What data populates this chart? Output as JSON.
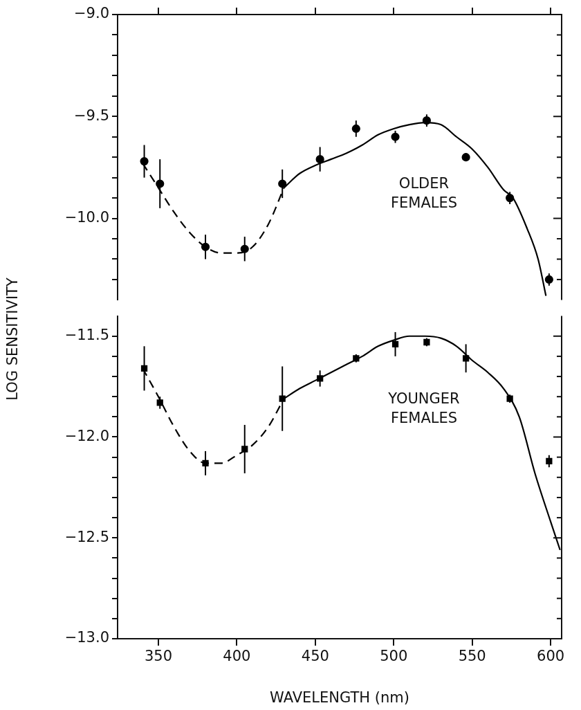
{
  "chart_data": [
    {
      "type": "scatter",
      "ylabel": "LOG SENSITIVITY",
      "xlim": [
        324,
        607
      ],
      "xticks": [
        {
          "value": 350,
          "label": null
        },
        {
          "value": 400,
          "label": null
        },
        {
          "value": 450,
          "label": null
        },
        {
          "value": 500,
          "label": null
        },
        {
          "value": 550,
          "label": null
        },
        {
          "value": 600,
          "label": null
        }
      ],
      "ylim": [
        -10.4,
        -9.0
      ],
      "yticks": [
        {
          "value": -9.0,
          "label": "−9.0"
        },
        {
          "value": -9.1,
          "label": null
        },
        {
          "value": -9.2,
          "label": null
        },
        {
          "value": -9.3,
          "label": null
        },
        {
          "value": -9.4,
          "label": null
        },
        {
          "value": -9.5,
          "label": "−9.5"
        },
        {
          "value": -9.6,
          "label": null
        },
        {
          "value": -9.7,
          "label": null
        },
        {
          "value": -9.8,
          "label": null
        },
        {
          "value": -9.9,
          "label": null
        },
        {
          "value": -10.0,
          "label": "−10.0"
        },
        {
          "value": -10.1,
          "label": null
        },
        {
          "value": -10.2,
          "label": null
        },
        {
          "value": -10.3,
          "label": null
        }
      ],
      "tick_labels": "y",
      "annotations": [
        "OLDER FEMALES"
      ],
      "series": [
        {
          "type": "scatter",
          "color": "#000000",
          "marker": "circle",
          "x": [
            341,
            351,
            380,
            405,
            429,
            453,
            476,
            501,
            521,
            546,
            574,
            599
          ],
          "values": [
            -9.72,
            -9.83,
            -10.14,
            -10.15,
            -9.83,
            -9.71,
            -9.56,
            -9.6,
            -9.52,
            -9.7,
            -9.9,
            -10.3
          ],
          "errors": [
            0.08,
            0.12,
            0.06,
            0.06,
            0.07,
            0.06,
            0.04,
            0.03,
            0.03,
            0.02,
            0.03,
            0.03
          ]
        },
        {
          "type": "line",
          "color": "#000000",
          "marker": "none",
          "line_style": "dashed",
          "x": [
            340,
            350,
            360,
            370,
            380,
            390,
            400,
            410,
            420,
            430
          ],
          "values": [
            -9.73,
            -9.85,
            -9.97,
            -10.07,
            -10.14,
            -10.17,
            -10.17,
            -10.14,
            -10.03,
            -9.85
          ]
        },
        {
          "type": "line",
          "color": "#000000",
          "marker": "none",
          "line_style": "solid",
          "x": [
            430,
            440,
            450,
            460,
            470,
            480,
            490,
            500,
            510,
            520,
            530,
            540,
            550,
            560,
            570,
            576,
            585,
            592,
            597
          ],
          "values": [
            -9.85,
            -9.78,
            -9.74,
            -9.71,
            -9.68,
            -9.64,
            -9.59,
            -9.56,
            -9.54,
            -9.53,
            -9.54,
            -9.6,
            -9.66,
            -9.75,
            -9.86,
            -9.9,
            -10.05,
            -10.2,
            -10.38
          ]
        }
      ]
    },
    {
      "type": "scatter",
      "xlabel": "WAVELENGTH (nm)",
      "xlim": [
        324,
        607
      ],
      "xticks": [
        350,
        400,
        450,
        500,
        550,
        600
      ],
      "ylim": [
        -13.0,
        -11.4
      ],
      "yticks": [
        {
          "value": -11.5,
          "label": "−11.5"
        },
        {
          "value": -11.6,
          "label": null
        },
        {
          "value": -11.7,
          "label": null
        },
        {
          "value": -11.8,
          "label": null
        },
        {
          "value": -11.9,
          "label": null
        },
        {
          "value": -12.0,
          "label": "−12.0"
        },
        {
          "value": -12.1,
          "label": null
        },
        {
          "value": -12.2,
          "label": null
        },
        {
          "value": -12.3,
          "label": null
        },
        {
          "value": -12.4,
          "label": null
        },
        {
          "value": -12.5,
          "label": "−12.5"
        },
        {
          "value": -12.6,
          "label": null
        },
        {
          "value": -12.7,
          "label": null
        },
        {
          "value": -12.8,
          "label": null
        },
        {
          "value": -12.9,
          "label": null
        },
        {
          "value": -13.0,
          "label": "−13.0"
        }
      ],
      "annotations": [
        "YOUNGER FEMALES"
      ],
      "series": [
        {
          "type": "scatter",
          "color": "#000000",
          "marker": "square",
          "x": [
            341,
            351,
            380,
            405,
            429,
            453,
            476,
            501,
            521,
            546,
            574,
            599
          ],
          "values": [
            -11.66,
            -11.83,
            -12.13,
            -12.06,
            -11.81,
            -11.71,
            -11.61,
            -11.54,
            -11.53,
            -11.61,
            -11.81,
            -12.12
          ],
          "errors": [
            0.11,
            0.03,
            0.06,
            0.12,
            0.16,
            0.04,
            0.02,
            0.06,
            0.02,
            0.07,
            0.02,
            0.03
          ]
        },
        {
          "type": "line",
          "color": "#000000",
          "marker": "none",
          "line_style": "dashed",
          "x": [
            340,
            350,
            360,
            370,
            380,
            390,
            400,
            410,
            420,
            430
          ],
          "values": [
            -11.66,
            -11.8,
            -11.95,
            -12.07,
            -12.13,
            -12.13,
            -12.09,
            -12.04,
            -11.95,
            -11.81
          ]
        },
        {
          "type": "line",
          "color": "#000000",
          "marker": "none",
          "line_style": "solid",
          "x": [
            430,
            440,
            450,
            460,
            470,
            480,
            490,
            500,
            510,
            520,
            530,
            540,
            550,
            560,
            570,
            580,
            590,
            600,
            606
          ],
          "values": [
            -11.81,
            -11.76,
            -11.72,
            -11.68,
            -11.64,
            -11.6,
            -11.55,
            -11.52,
            -11.5,
            -11.5,
            -11.51,
            -11.55,
            -11.62,
            -11.68,
            -11.76,
            -11.9,
            -12.18,
            -12.42,
            -12.56
          ]
        }
      ]
    }
  ]
}
